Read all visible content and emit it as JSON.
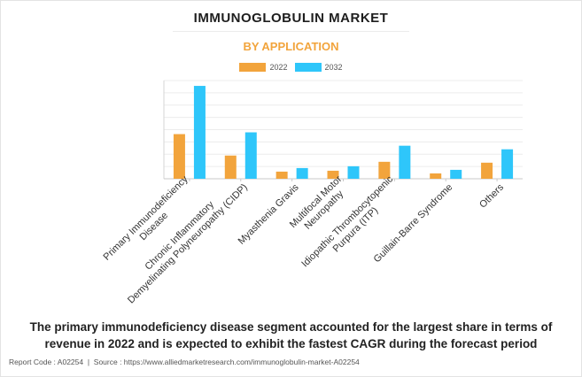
{
  "page": {
    "caption_line1": "The primary immunodeficiency disease segment accounted for the largest share in terms of",
    "caption_line2": "revenue in 2022 and is expected to exhibit the fastest CAGR during the forecast period",
    "report_code": "Report Code : A02254",
    "separator": "  |  ",
    "source": "Source : https://www.alliedmarketresearch.com/immunoglobulin-market-A02254"
  },
  "chart_data": {
    "type": "bar",
    "title": "IMMUNOGLOBULIN MARKET",
    "subtitle": "BY APPLICATION",
    "legend_position": "top-center",
    "grid": true,
    "ylim": [
      0,
      110
    ],
    "categories": [
      [
        "Primary Immunodeficiency",
        "Disease"
      ],
      [
        "Chronic Inflammatory",
        "Demyelinating Polyneuropathy (CIDP)"
      ],
      [
        "Myasthenia Gravis"
      ],
      [
        "Multifocal Motor",
        "Neuropathy"
      ],
      [
        "Idiopathic Thrombocytopenic",
        "Purpura (ITP)"
      ],
      [
        "Guillain-Barre Syndrome"
      ],
      [
        "Others"
      ]
    ],
    "series": [
      {
        "name": "2022",
        "color": "#f2a43c",
        "values": [
          50,
          26,
          8,
          9,
          19,
          6,
          18
        ]
      },
      {
        "name": "2032",
        "color": "#2ec6fa",
        "values": [
          104,
          52,
          12,
          14,
          37,
          10,
          33
        ]
      }
    ]
  }
}
